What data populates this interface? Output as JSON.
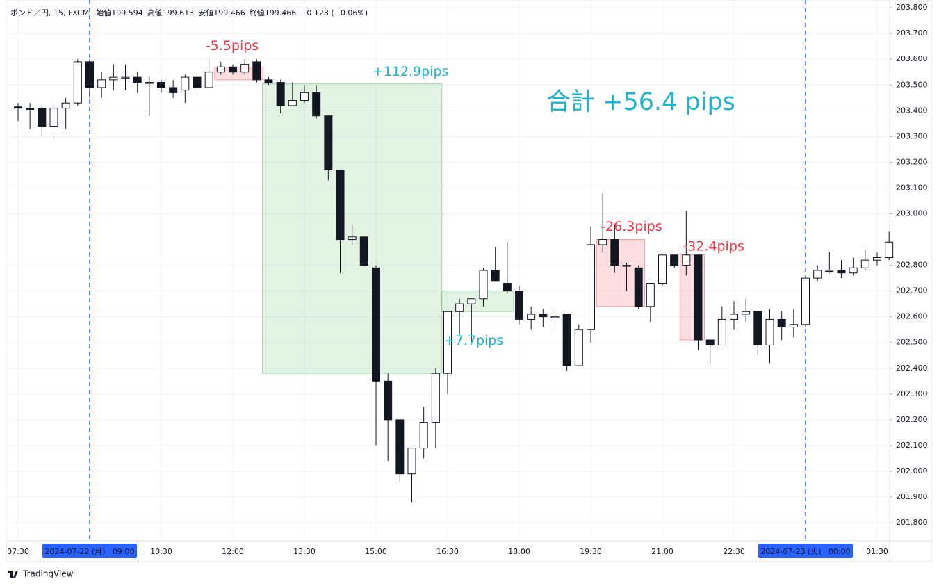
{
  "chart_data": {
    "type": "candlestick",
    "header": [
      "ポンド／円, 15, FXCM",
      "始値199.594",
      "高値199.613",
      "安値199.466",
      "終値199.466",
      "−0.128 (−0.06%)"
    ],
    "ohlc": [
      [
        203.415,
        203.43,
        203.36,
        203.41
      ],
      [
        203.41,
        203.43,
        203.33,
        203.405
      ],
      [
        203.41,
        203.42,
        203.3,
        203.34
      ],
      [
        203.34,
        203.43,
        203.31,
        203.41
      ],
      [
        203.41,
        203.45,
        203.33,
        203.43
      ],
      [
        203.43,
        203.6,
        203.42,
        203.59
      ],
      [
        203.59,
        203.6,
        203.45,
        203.49
      ],
      [
        203.49,
        203.55,
        203.45,
        203.52
      ],
      [
        203.52,
        203.58,
        203.48,
        203.53
      ],
      [
        203.53,
        203.58,
        203.48,
        203.53
      ],
      [
        203.53,
        203.55,
        203.47,
        203.51
      ],
      [
        203.51,
        203.53,
        203.38,
        203.51
      ],
      [
        203.51,
        203.52,
        203.47,
        203.49
      ],
      [
        203.49,
        203.52,
        203.45,
        203.47
      ],
      [
        203.48,
        203.54,
        203.43,
        203.53
      ],
      [
        203.53,
        203.54,
        203.48,
        203.49
      ],
      [
        203.49,
        203.6,
        203.49,
        203.55
      ],
      [
        203.55,
        203.59,
        203.54,
        203.57
      ],
      [
        203.57,
        203.58,
        203.54,
        203.55
      ],
      [
        203.55,
        203.6,
        203.54,
        203.58
      ],
      [
        203.59,
        203.6,
        203.51,
        203.52
      ],
      [
        203.52,
        203.53,
        203.5,
        203.51
      ],
      [
        203.51,
        203.52,
        203.39,
        203.42
      ],
      [
        203.42,
        203.51,
        203.42,
        203.44
      ],
      [
        203.44,
        203.5,
        203.43,
        203.47
      ],
      [
        203.47,
        203.5,
        203.37,
        203.38
      ],
      [
        203.38,
        203.38,
        203.13,
        203.17
      ],
      [
        203.17,
        203.17,
        202.77,
        202.9
      ],
      [
        202.9,
        202.96,
        202.88,
        202.91
      ],
      [
        202.91,
        202.91,
        202.8,
        202.8
      ],
      [
        202.79,
        202.8,
        202.1,
        202.35
      ],
      [
        202.35,
        202.38,
        202.04,
        202.2
      ],
      [
        202.2,
        202.2,
        201.96,
        201.99
      ],
      [
        201.99,
        202.09,
        201.88,
        202.09
      ],
      [
        202.09,
        202.25,
        202.05,
        202.19
      ],
      [
        202.19,
        202.4,
        202.09,
        202.38
      ],
      [
        202.38,
        202.62,
        202.3,
        202.62
      ],
      [
        202.62,
        202.67,
        202.53,
        202.65
      ],
      [
        202.65,
        202.67,
        202.5,
        202.67
      ],
      [
        202.67,
        202.79,
        202.64,
        202.78
      ],
      [
        202.78,
        202.87,
        202.74,
        202.74
      ],
      [
        202.73,
        202.89,
        202.69,
        202.7
      ],
      [
        202.7,
        202.72,
        202.57,
        202.59
      ],
      [
        202.59,
        202.64,
        202.55,
        202.61
      ],
      [
        202.61,
        202.63,
        202.56,
        202.6
      ],
      [
        202.6,
        202.64,
        202.55,
        202.6
      ],
      [
        202.61,
        202.61,
        202.39,
        202.41
      ],
      [
        202.41,
        202.57,
        202.41,
        202.55
      ],
      [
        202.55,
        202.95,
        202.5,
        202.88
      ],
      [
        202.88,
        203.08,
        202.85,
        202.9
      ],
      [
        202.9,
        202.96,
        202.77,
        202.8
      ],
      [
        202.8,
        202.81,
        202.7,
        202.8
      ],
      [
        202.79,
        202.8,
        202.63,
        202.64
      ],
      [
        202.64,
        202.73,
        202.58,
        202.73
      ],
      [
        202.73,
        202.84,
        202.72,
        202.84
      ],
      [
        202.84,
        202.84,
        202.79,
        202.8
      ],
      [
        202.8,
        203.01,
        202.76,
        202.84
      ],
      [
        202.84,
        202.84,
        202.47,
        202.51
      ],
      [
        202.51,
        202.51,
        202.42,
        202.49
      ],
      [
        202.49,
        202.64,
        202.49,
        202.59
      ],
      [
        202.59,
        202.66,
        202.55,
        202.61
      ],
      [
        202.61,
        202.67,
        202.58,
        202.62
      ],
      [
        202.62,
        202.62,
        202.45,
        202.49
      ],
      [
        202.49,
        202.63,
        202.42,
        202.59
      ],
      [
        202.59,
        202.62,
        202.51,
        202.56
      ],
      [
        202.56,
        202.63,
        202.52,
        202.57
      ],
      [
        202.57,
        202.75,
        202.56,
        202.75
      ],
      [
        202.75,
        202.8,
        202.74,
        202.78
      ],
      [
        202.78,
        202.85,
        202.77,
        202.78
      ],
      [
        202.78,
        202.82,
        202.75,
        202.77
      ],
      [
        202.77,
        202.83,
        202.76,
        202.79
      ],
      [
        202.79,
        202.86,
        202.78,
        202.82
      ],
      [
        202.82,
        202.85,
        202.8,
        202.83
      ],
      [
        202.83,
        202.93,
        202.82,
        202.89
      ]
    ],
    "up_color": "#ffffff",
    "down_color": "#131722",
    "wick_color": "#131722",
    "ylim": [
      201.73,
      203.83
    ],
    "yticks": [
      {
        "value": 201.8,
        "label": "201.800"
      },
      {
        "value": 201.9,
        "label": "201.900"
      },
      {
        "value": 202.0,
        "label": "202.000"
      },
      {
        "value": 202.1,
        "label": "202.100"
      },
      {
        "value": 202.2,
        "label": "202.200"
      },
      {
        "value": 202.3,
        "label": "202.300"
      },
      {
        "value": 202.4,
        "label": "202.400"
      },
      {
        "value": 202.5,
        "label": "202.500"
      },
      {
        "value": 202.6,
        "label": "202.600"
      },
      {
        "value": 202.7,
        "label": "202.700"
      },
      {
        "value": 202.8,
        "label": "202.800"
      },
      {
        "value": 203.0,
        "label": "203.000"
      },
      {
        "value": 203.1,
        "label": "203.100"
      },
      {
        "value": 203.2,
        "label": "203.200"
      },
      {
        "value": 203.3,
        "label": "203.300"
      },
      {
        "value": 203.4,
        "label": "203.400"
      },
      {
        "value": 203.5,
        "label": "203.500"
      },
      {
        "value": 203.6,
        "label": "203.600"
      },
      {
        "value": 203.7,
        "label": "203.700"
      },
      {
        "value": 203.8,
        "label": "203.800"
      }
    ],
    "xticks": [
      {
        "value": 0,
        "label": "07:30"
      },
      {
        "value": 6,
        "label": "2024-07-22 (月)   09:00"
      },
      {
        "value": 12,
        "label": "10:30"
      },
      {
        "value": 18,
        "label": "12:00"
      },
      {
        "value": 24,
        "label": "13:30"
      },
      {
        "value": 30,
        "label": "15:00"
      },
      {
        "value": 36,
        "label": "16:30"
      },
      {
        "value": 42,
        "label": "18:00"
      },
      {
        "value": 48,
        "label": "19:30"
      },
      {
        "value": 54,
        "label": "21:00"
      },
      {
        "value": 60,
        "label": "22:30"
      },
      {
        "value": 66,
        "label": "2024-07-23 (火)   00:00"
      },
      {
        "value": 72,
        "label": "01:30"
      }
    ],
    "session_lines": [
      6,
      66
    ],
    "grid": true,
    "boxes": [
      {
        "label": "-5.5pips",
        "from": 17,
        "to": 20,
        "top": 203.57,
        "bottom": 203.52,
        "color": "#f23645"
      },
      {
        "label": "+112.9pips",
        "from": 21,
        "to": 35,
        "top": 203.505,
        "bottom": 202.38,
        "color": "#4caf50"
      },
      {
        "label": "+7.7pips",
        "from": 36,
        "to": 41,
        "top": 202.7,
        "bottom": 202.62,
        "color": "#4caf50"
      },
      {
        "label": "-26.3pips",
        "from": 49,
        "to": 52,
        "top": 202.9,
        "bottom": 202.64,
        "color": "#f23645"
      },
      {
        "label": "-32.4pips",
        "from": 56,
        "to": 57,
        "top": 202.84,
        "bottom": 202.51,
        "color": "#f23645"
      }
    ],
    "label_colors": {
      "gain": "#1fb3cc",
      "loss": "#f23645"
    },
    "total": "合計 +56.4 pips",
    "footer": "TradingView"
  }
}
